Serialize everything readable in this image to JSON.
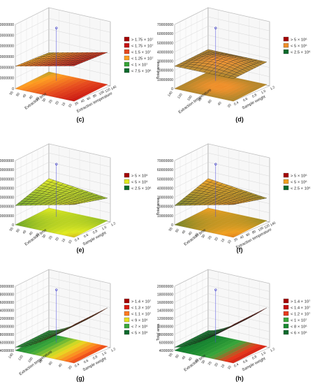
{
  "figure": {
    "panels": [
      {
        "caption": "(c)",
        "chart_data": {
          "type": "surface3d",
          "zlabel": "Total area",
          "xlabel": "Extraction temperature",
          "ylabel": "Extraction time",
          "z_ticks": [
            "0",
            "10000000",
            "20000000",
            "30000000",
            "40000000",
            "50000000",
            "60000000"
          ],
          "x_ticks": [
            "20",
            "40",
            "60",
            "80",
            "100",
            "120",
            "140"
          ],
          "y_ticks": [
            "10",
            "15",
            "20",
            "25",
            "30",
            "35",
            "40",
            "45",
            "50",
            "55"
          ],
          "legend": [
            {
              "label": "> 1.75 × 10⁷",
              "color": "#a50000"
            },
            {
              "label": "< 1.75 × 10⁷",
              "color": "#c61010"
            },
            {
              "label": "< 1.5 × 10⁷",
              "color": "#e64a1e"
            },
            {
              "label": "< 1.25 × 10⁷",
              "color": "#ffa020"
            },
            {
              "label": "< 1 × 10⁷",
              "color": "#35a335"
            },
            {
              "label": "< 7.5 × 10⁶",
              "color": "#0a6a2c"
            }
          ],
          "surface": {
            "theta": [
              [
                -0.28,
                -0.2,
                -0.12
              ],
              [
                -0.2,
                -0.12,
                -0.04
              ],
              [
                0.15,
                0.25,
                0.35
              ]
            ],
            "top": 0.32,
            "bottom": 0.62,
            "range": 0.55,
            "mode": "gradx"
          }
        }
      },
      {
        "caption": "(d)",
        "chart_data": {
          "type": "surface3d",
          "zlabel": "Total area",
          "xlabel": "Sample weight",
          "ylabel": "Extraction temperature",
          "z_ticks": [
            "0",
            "10000000",
            "20000000",
            "30000000",
            "40000000",
            "50000000",
            "60000000",
            "70000000"
          ],
          "x_ticks": [
            "0.4",
            "0.6",
            "0.8",
            "1.0",
            "1.2"
          ],
          "y_ticks": [
            "20",
            "40",
            "60",
            "80",
            "100",
            "120",
            "140"
          ],
          "legend": [
            {
              "label": "> 5 × 10⁶",
              "color": "#a50000"
            },
            {
              "label": "< 5 × 10⁶",
              "color": "#f0902a"
            },
            {
              "label": "< 2.5 × 10⁶",
              "color": "#0a6a2c"
            }
          ],
          "surface": {
            "theta": [
              [
                -0.1,
                0.0,
                -0.1
              ],
              [
                0.0,
                0.1,
                0.0
              ],
              [
                -0.1,
                0.0,
                -0.1
              ]
            ],
            "top": 0.35,
            "bottom": 0.58,
            "range": 0.55,
            "mode": "dome"
          }
        }
      },
      {
        "caption": "(e)",
        "chart_data": {
          "type": "surface3d",
          "zlabel": "Total area",
          "xlabel": "Sample weight",
          "ylabel": "Extraction time",
          "z_ticks": [
            "0",
            "10000000",
            "20000000",
            "30000000",
            "40000000",
            "50000000",
            "60000000",
            "70000000"
          ],
          "x_ticks": [
            "0.4",
            "0.6",
            "0.8",
            "1.0",
            "1.2"
          ],
          "y_ticks": [
            "10",
            "15",
            "20",
            "25",
            "30",
            "35",
            "40",
            "45",
            "50",
            "55"
          ],
          "legend": [
            {
              "label": "> 5 × 10⁶",
              "color": "#a50000"
            },
            {
              "label": "< 5 × 10⁶",
              "color": "#e0ea20"
            },
            {
              "label": "< 2.5 × 10⁶",
              "color": "#0a6a2c"
            }
          ],
          "surface": {
            "theta": [
              [
                -0.05,
                0.05,
                0.1
              ],
              [
                0.0,
                0.12,
                0.18
              ],
              [
                0.05,
                0.2,
                0.25
              ]
            ],
            "top": 0.38,
            "bottom": 0.6,
            "range": 0.55,
            "mode": "saddle"
          }
        }
      },
      {
        "caption": "(f)",
        "chart_data": {
          "type": "surface3d",
          "zlabel": "Total area",
          "xlabel": "Extraction temperature",
          "ylabel": "Extraction time",
          "z_ticks": [
            "0",
            "10000000",
            "20000000",
            "30000000",
            "40000000",
            "50000000",
            "60000000",
            "70000000"
          ],
          "x_ticks": [
            "20",
            "40",
            "60",
            "80",
            "100",
            "120",
            "140"
          ],
          "y_ticks": [
            "10",
            "15",
            "20",
            "25",
            "30",
            "35",
            "40",
            "45",
            "50",
            "55"
          ],
          "legend": [
            {
              "label": "> 5 × 10⁶",
              "color": "#a50000"
            },
            {
              "label": "< 5 × 10⁶",
              "color": "#f0a020"
            },
            {
              "label": "< 2.5 × 10⁶",
              "color": "#0a6a2c"
            }
          ],
          "surface": {
            "theta": [
              [
                -0.05,
                0.05,
                0.1
              ],
              [
                0.0,
                0.12,
                0.18
              ],
              [
                0.05,
                0.2,
                0.25
              ]
            ],
            "top": 0.38,
            "bottom": 0.6,
            "range": 0.55,
            "mode": "saddle"
          }
        }
      },
      {
        "caption": "(g)",
        "chart_data": {
          "type": "surface3d",
          "zlabel": "Total area",
          "xlabel": "Sample weight",
          "ylabel": "Extraction temperature",
          "z_ticks": [
            "4000000",
            "6000000",
            "8000000",
            "10000000",
            "12000000",
            "14000000",
            "16000000",
            "18000000",
            "20000000"
          ],
          "x_ticks": [
            "0.4",
            "0.6",
            "0.8",
            "1.0",
            "1.2"
          ],
          "y_ticks": [
            "20",
            "40",
            "60",
            "80",
            "100",
            "120",
            "140"
          ],
          "legend": [
            {
              "label": "> 1.4 × 10⁷",
              "color": "#a50000"
            },
            {
              "label": "< 1.3 × 10⁷",
              "color": "#d81c10"
            },
            {
              "label": "< 1.1 × 10⁷",
              "color": "#ff7a20"
            },
            {
              "label": "< 9 × 10⁶",
              "color": "#e8e020"
            },
            {
              "label": "< 7 × 10⁶",
              "color": "#3aa83a"
            },
            {
              "label": "< 5 × 10⁶",
              "color": "#0a6a2c"
            }
          ],
          "surface": {
            "theta": [
              [
                0.0,
                0.2,
                0.45
              ],
              [
                0.0,
                0.2,
                0.45
              ],
              [
                0.0,
                0.2,
                0.45
              ]
            ],
            "top": 0.15,
            "bottom": 0.75,
            "range": 0.9,
            "mode": "rise"
          }
        }
      },
      {
        "caption": "(h)",
        "chart_data": {
          "type": "surface3d",
          "zlabel": "Total area",
          "xlabel": "Sample weight",
          "ylabel": "Extraction time",
          "z_ticks": [
            "4000000",
            "6000000",
            "8000000",
            "10000000",
            "12000000",
            "14000000",
            "16000000",
            "18000000",
            "20000000"
          ],
          "x_ticks": [
            "0.4",
            "0.6",
            "0.8",
            "1.0",
            "1.2"
          ],
          "y_ticks": [
            "10",
            "15",
            "20",
            "25",
            "30",
            "35",
            "40",
            "45",
            "50",
            "55"
          ],
          "legend": [
            {
              "label": "> 1.4 × 10⁷",
              "color": "#a50000"
            },
            {
              "label": "< 1.4 × 10⁷",
              "color": "#c41010"
            },
            {
              "label": "< 1.2 × 10⁷",
              "color": "#e83a1a"
            },
            {
              "label": "< 1 × 10⁷",
              "color": "#3aa83a"
            },
            {
              "label": "< 8 × 10⁶",
              "color": "#1a8a30"
            },
            {
              "label": "< 6 × 10⁶",
              "color": "#0a6a2c"
            }
          ],
          "surface": {
            "theta": [
              [
                0.0,
                0.2,
                0.45
              ],
              [
                0.0,
                0.2,
                0.45
              ],
              [
                0.0,
                0.2,
                0.45
              ]
            ],
            "top": 0.15,
            "bottom": 0.75,
            "range": 0.9,
            "mode": "rise"
          }
        }
      }
    ]
  }
}
